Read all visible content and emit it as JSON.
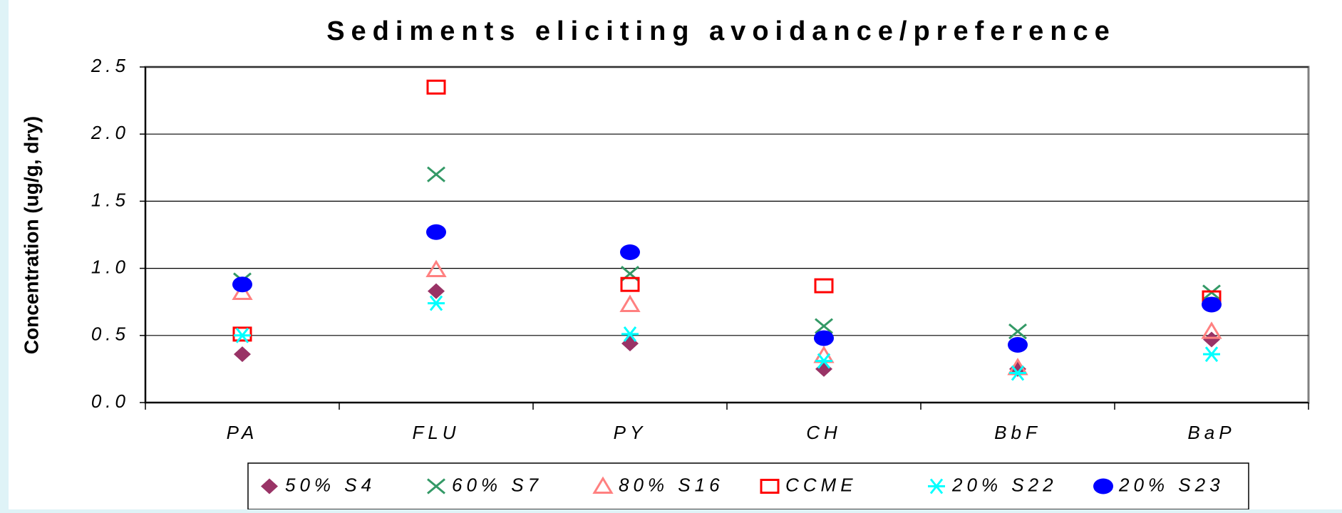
{
  "chart_data": {
    "type": "scatter",
    "title": "Sediments eliciting avoidance/preference",
    "y_label": "Concentration (ug/g, dry)",
    "categories": [
      "PA",
      "FLU",
      "PY",
      "CH",
      "BbF",
      "BaP"
    ],
    "series": [
      {
        "name": "50% S4",
        "color": "#993366",
        "marker": "diamond",
        "values": [
          0.36,
          0.83,
          0.44,
          0.25,
          0.25,
          0.47
        ]
      },
      {
        "name": "60% S7",
        "color": "#339966",
        "marker": "x",
        "values": [
          0.91,
          1.7,
          0.96,
          0.57,
          0.53,
          0.82
        ]
      },
      {
        "name": "80% S16",
        "color": "#ff8080",
        "marker": "triangle",
        "values": [
          0.82,
          0.99,
          0.73,
          0.35,
          0.26,
          0.53
        ]
      },
      {
        "name": "CCME",
        "color": "#ff0000",
        "marker": "square",
        "values": [
          0.51,
          2.35,
          0.88,
          0.87,
          null,
          0.78
        ]
      },
      {
        "name": "20% S22",
        "color": "#00ffff",
        "marker": "asterisk",
        "values": [
          0.5,
          0.74,
          0.51,
          0.31,
          0.22,
          0.36
        ]
      },
      {
        "name": "20% S23",
        "color": "#0000ff",
        "marker": "ellipse",
        "values": [
          0.88,
          1.27,
          1.12,
          0.48,
          0.43,
          0.73
        ]
      }
    ],
    "ylim": [
      0,
      2.5
    ],
    "yticks": [
      {
        "value": 0,
        "label": "0.0"
      },
      0.5,
      {
        "value": 1,
        "label": "1.0"
      },
      1.5,
      {
        "value": 2,
        "label": "2.0"
      },
      2.5
    ],
    "grid": true,
    "legend": "bottom"
  }
}
